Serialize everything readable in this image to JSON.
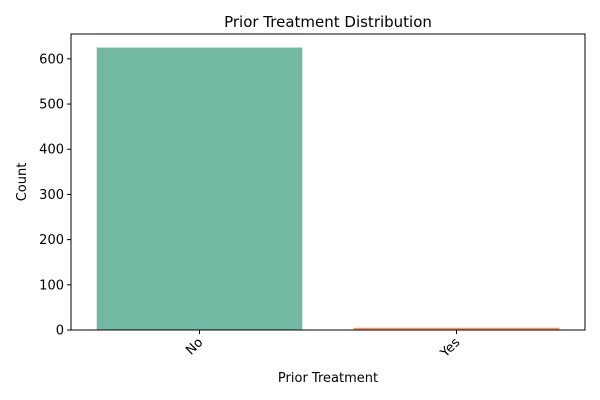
{
  "chart_data": {
    "type": "bar",
    "title": "Prior Treatment Distribution",
    "xlabel": "Prior Treatment",
    "ylabel": "Count",
    "categories": [
      "No",
      "Yes"
    ],
    "values": [
      625,
      5
    ],
    "colors": [
      "#73b8a2",
      "#f4966a"
    ],
    "ylim": [
      0,
      655
    ],
    "yticks": [
      0,
      100,
      200,
      300,
      400,
      500,
      600
    ],
    "grid": false,
    "xtick_rotation": "45deg"
  }
}
